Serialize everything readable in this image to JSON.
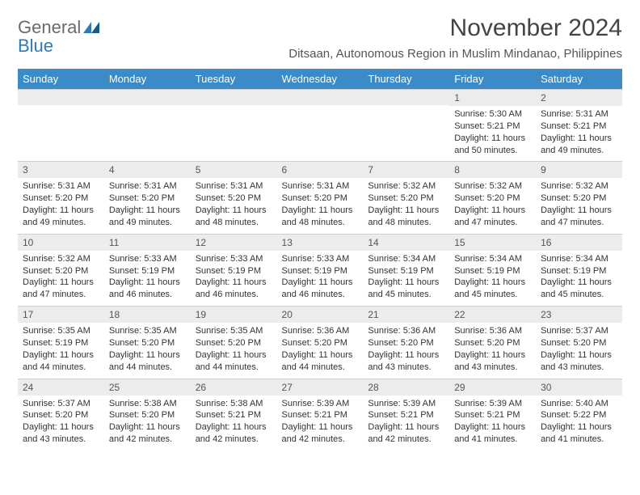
{
  "brand": {
    "text1": "General",
    "text2": "Blue"
  },
  "title": "November 2024",
  "location": "Ditsaan, Autonomous Region in Muslim Mindanao, Philippines",
  "colors": {
    "header_bg": "#3b8bc8",
    "header_fg": "#ffffff",
    "daynum_bg": "#ececec",
    "text": "#333333",
    "brand_gray": "#6a6a6a",
    "brand_blue": "#2a7bbf"
  },
  "weekdays": [
    "Sunday",
    "Monday",
    "Tuesday",
    "Wednesday",
    "Thursday",
    "Friday",
    "Saturday"
  ],
  "leading_blanks": 5,
  "days": [
    {
      "n": 1,
      "sunrise": "5:30 AM",
      "sunset": "5:21 PM",
      "daylight": "11 hours and 50 minutes."
    },
    {
      "n": 2,
      "sunrise": "5:31 AM",
      "sunset": "5:21 PM",
      "daylight": "11 hours and 49 minutes."
    },
    {
      "n": 3,
      "sunrise": "5:31 AM",
      "sunset": "5:20 PM",
      "daylight": "11 hours and 49 minutes."
    },
    {
      "n": 4,
      "sunrise": "5:31 AM",
      "sunset": "5:20 PM",
      "daylight": "11 hours and 49 minutes."
    },
    {
      "n": 5,
      "sunrise": "5:31 AM",
      "sunset": "5:20 PM",
      "daylight": "11 hours and 48 minutes."
    },
    {
      "n": 6,
      "sunrise": "5:31 AM",
      "sunset": "5:20 PM",
      "daylight": "11 hours and 48 minutes."
    },
    {
      "n": 7,
      "sunrise": "5:32 AM",
      "sunset": "5:20 PM",
      "daylight": "11 hours and 48 minutes."
    },
    {
      "n": 8,
      "sunrise": "5:32 AM",
      "sunset": "5:20 PM",
      "daylight": "11 hours and 47 minutes."
    },
    {
      "n": 9,
      "sunrise": "5:32 AM",
      "sunset": "5:20 PM",
      "daylight": "11 hours and 47 minutes."
    },
    {
      "n": 10,
      "sunrise": "5:32 AM",
      "sunset": "5:20 PM",
      "daylight": "11 hours and 47 minutes."
    },
    {
      "n": 11,
      "sunrise": "5:33 AM",
      "sunset": "5:19 PM",
      "daylight": "11 hours and 46 minutes."
    },
    {
      "n": 12,
      "sunrise": "5:33 AM",
      "sunset": "5:19 PM",
      "daylight": "11 hours and 46 minutes."
    },
    {
      "n": 13,
      "sunrise": "5:33 AM",
      "sunset": "5:19 PM",
      "daylight": "11 hours and 46 minutes."
    },
    {
      "n": 14,
      "sunrise": "5:34 AM",
      "sunset": "5:19 PM",
      "daylight": "11 hours and 45 minutes."
    },
    {
      "n": 15,
      "sunrise": "5:34 AM",
      "sunset": "5:19 PM",
      "daylight": "11 hours and 45 minutes."
    },
    {
      "n": 16,
      "sunrise": "5:34 AM",
      "sunset": "5:19 PM",
      "daylight": "11 hours and 45 minutes."
    },
    {
      "n": 17,
      "sunrise": "5:35 AM",
      "sunset": "5:19 PM",
      "daylight": "11 hours and 44 minutes."
    },
    {
      "n": 18,
      "sunrise": "5:35 AM",
      "sunset": "5:20 PM",
      "daylight": "11 hours and 44 minutes."
    },
    {
      "n": 19,
      "sunrise": "5:35 AM",
      "sunset": "5:20 PM",
      "daylight": "11 hours and 44 minutes."
    },
    {
      "n": 20,
      "sunrise": "5:36 AM",
      "sunset": "5:20 PM",
      "daylight": "11 hours and 44 minutes."
    },
    {
      "n": 21,
      "sunrise": "5:36 AM",
      "sunset": "5:20 PM",
      "daylight": "11 hours and 43 minutes."
    },
    {
      "n": 22,
      "sunrise": "5:36 AM",
      "sunset": "5:20 PM",
      "daylight": "11 hours and 43 minutes."
    },
    {
      "n": 23,
      "sunrise": "5:37 AM",
      "sunset": "5:20 PM",
      "daylight": "11 hours and 43 minutes."
    },
    {
      "n": 24,
      "sunrise": "5:37 AM",
      "sunset": "5:20 PM",
      "daylight": "11 hours and 43 minutes."
    },
    {
      "n": 25,
      "sunrise": "5:38 AM",
      "sunset": "5:20 PM",
      "daylight": "11 hours and 42 minutes."
    },
    {
      "n": 26,
      "sunrise": "5:38 AM",
      "sunset": "5:21 PM",
      "daylight": "11 hours and 42 minutes."
    },
    {
      "n": 27,
      "sunrise": "5:39 AM",
      "sunset": "5:21 PM",
      "daylight": "11 hours and 42 minutes."
    },
    {
      "n": 28,
      "sunrise": "5:39 AM",
      "sunset": "5:21 PM",
      "daylight": "11 hours and 42 minutes."
    },
    {
      "n": 29,
      "sunrise": "5:39 AM",
      "sunset": "5:21 PM",
      "daylight": "11 hours and 41 minutes."
    },
    {
      "n": 30,
      "sunrise": "5:40 AM",
      "sunset": "5:22 PM",
      "daylight": "11 hours and 41 minutes."
    }
  ],
  "labels": {
    "sunrise": "Sunrise:",
    "sunset": "Sunset:",
    "daylight": "Daylight:"
  }
}
